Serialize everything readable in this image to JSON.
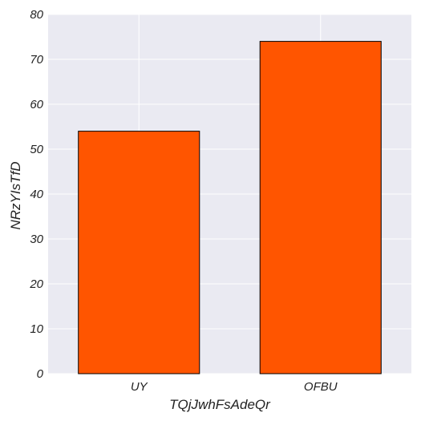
{
  "chart_data": {
    "type": "bar",
    "title": "",
    "xlabel": "TQjJwhFsAdeQr",
    "ylabel": "NRzYIsTfD",
    "categories": [
      "UY",
      "OFBU"
    ],
    "series": [
      {
        "values": [
          54,
          74
        ]
      }
    ],
    "ylim": [
      0,
      80
    ],
    "yticks": [
      0,
      10,
      20,
      30,
      40,
      50,
      60,
      70,
      80
    ],
    "grid": true,
    "legend": "none",
    "colors": {
      "bar": "#ff5500",
      "bar_edge": "#000000",
      "plot_background": "#eaeaf2",
      "grid": "#ffffff"
    }
  }
}
